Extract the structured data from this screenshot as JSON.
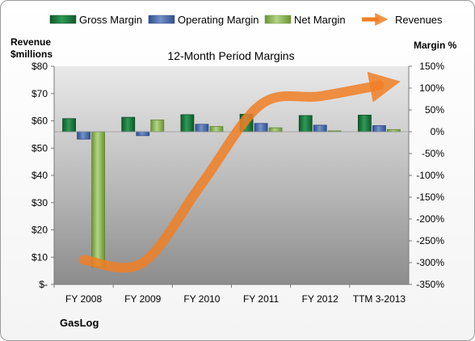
{
  "chart_data": {
    "type": "bar",
    "title": "12-Month Period Margins",
    "categories": [
      "FY 2008",
      "FY 2009",
      "FY 2010",
      "FY 2011",
      "FY 2012",
      "TTM 3-2013"
    ],
    "left_axis": {
      "label_line1": "Revenue",
      "label_line2": "$millions",
      "min": 0,
      "max": 80,
      "step": 10,
      "tick_labels": [
        "$-",
        "$10",
        "$20",
        "$30",
        "$40",
        "$50",
        "$60",
        "$70",
        "$80"
      ]
    },
    "right_axis": {
      "label": "Margin %",
      "min": -350,
      "max": 150,
      "step": 50,
      "tick_labels": [
        "-350%",
        "-300%",
        "-250%",
        "-200%",
        "-150%",
        "-100%",
        "-50%",
        "0%",
        "50%",
        "100%",
        "150%"
      ]
    },
    "series": [
      {
        "name": "Gross Margin",
        "type": "bar",
        "axis": "right",
        "color": "#1e7a3e",
        "values": [
          30,
          33,
          39,
          40,
          37,
          38
        ]
      },
      {
        "name": "Operating Margin",
        "type": "bar",
        "axis": "right",
        "color": "#4a6fb0",
        "values": [
          -17,
          -9,
          17,
          19,
          15,
          14
        ]
      },
      {
        "name": "Net Margin",
        "type": "bar",
        "axis": "right",
        "color": "#8fb85a",
        "values": [
          -310,
          27,
          12,
          9,
          2,
          5
        ]
      },
      {
        "name": "Revenues",
        "type": "line",
        "axis": "left",
        "color": "#f07f24",
        "values": [
          9,
          8,
          37,
          66,
          69,
          73
        ]
      }
    ],
    "legend_position": "top",
    "grid": false,
    "footer": "GasLog"
  }
}
